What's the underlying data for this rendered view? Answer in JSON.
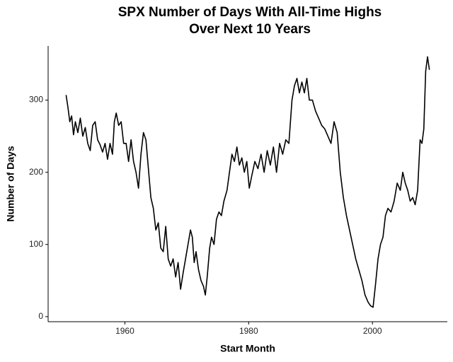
{
  "chart_data": {
    "type": "line",
    "title": [
      "SPX Number of Days With All-Time Highs",
      "Over Next 10 Years"
    ],
    "x_label": "Start Month",
    "y_label": "Number of Days",
    "color": "#000000",
    "xlim": [
      1947.6,
      2012.1
    ],
    "ylim": [
      -7,
      375
    ],
    "xticks": [
      1960,
      1980,
      2000
    ],
    "yticks": [
      0,
      100,
      200,
      300
    ],
    "grid": false,
    "x": [
      1950.5,
      1950.8,
      1951.1,
      1951.4,
      1951.7,
      1952.0,
      1952.4,
      1952.8,
      1953.2,
      1953.6,
      1954.0,
      1954.4,
      1954.8,
      1955.2,
      1955.6,
      1956.0,
      1956.4,
      1956.8,
      1957.2,
      1957.6,
      1958.0,
      1958.3,
      1958.6,
      1959.0,
      1959.4,
      1959.8,
      1960.2,
      1960.6,
      1961.0,
      1961.4,
      1961.8,
      1962.2,
      1962.6,
      1963.0,
      1963.4,
      1963.8,
      1964.2,
      1964.6,
      1965.0,
      1965.4,
      1965.8,
      1966.2,
      1966.6,
      1967.0,
      1967.4,
      1967.8,
      1968.2,
      1968.6,
      1969.0,
      1969.4,
      1969.8,
      1970.2,
      1970.6,
      1970.9,
      1971.2,
      1971.5,
      1971.9,
      1972.3,
      1972.7,
      1973.0,
      1973.3,
      1973.7,
      1974.0,
      1974.4,
      1974.8,
      1975.2,
      1975.6,
      1976.0,
      1976.5,
      1976.9,
      1977.3,
      1977.7,
      1978.1,
      1978.5,
      1978.9,
      1979.3,
      1979.7,
      1980.1,
      1980.5,
      1981.0,
      1981.5,
      1982.0,
      1982.5,
      1983.0,
      1983.5,
      1984.0,
      1984.5,
      1985.0,
      1985.5,
      1986.0,
      1986.5,
      1987.0,
      1987.4,
      1987.8,
      1988.2,
      1988.6,
      1989.0,
      1989.4,
      1989.8,
      1990.3,
      1990.8,
      1991.3,
      1991.8,
      1992.3,
      1992.8,
      1993.3,
      1993.8,
      1994.3,
      1994.8,
      1995.3,
      1995.8,
      1996.3,
      1996.8,
      1997.3,
      1997.8,
      1998.3,
      1998.8,
      1999.3,
      1999.7,
      2000.1,
      2000.5,
      2000.9,
      2001.3,
      2001.7,
      2002.1,
      2002.5,
      2003.0,
      2003.5,
      2004.0,
      2004.5,
      2004.9,
      2005.3,
      2005.7,
      2006.1,
      2006.5,
      2006.9,
      2007.3,
      2007.7,
      2008.0,
      2008.3,
      2008.6,
      2008.9,
      2009.2
    ],
    "values": [
      307,
      290,
      270,
      278,
      252,
      270,
      255,
      275,
      250,
      262,
      240,
      230,
      265,
      270,
      245,
      238,
      228,
      240,
      218,
      240,
      225,
      270,
      282,
      265,
      270,
      240,
      240,
      215,
      245,
      215,
      200,
      178,
      225,
      255,
      245,
      205,
      165,
      150,
      120,
      130,
      95,
      90,
      125,
      80,
      70,
      80,
      55,
      75,
      38,
      60,
      80,
      100,
      120,
      110,
      75,
      90,
      65,
      50,
      42,
      30,
      55,
      95,
      110,
      100,
      135,
      145,
      140,
      160,
      175,
      200,
      225,
      215,
      235,
      210,
      220,
      200,
      215,
      178,
      195,
      215,
      205,
      225,
      200,
      230,
      210,
      235,
      200,
      240,
      225,
      245,
      240,
      300,
      320,
      330,
      310,
      325,
      310,
      330,
      300,
      300,
      285,
      275,
      265,
      260,
      250,
      240,
      270,
      255,
      200,
      165,
      140,
      120,
      100,
      80,
      65,
      50,
      30,
      20,
      15,
      13,
      45,
      80,
      100,
      110,
      140,
      150,
      145,
      160,
      185,
      175,
      200,
      185,
      175,
      160,
      165,
      155,
      175,
      245,
      240,
      260,
      340,
      360,
      342
    ]
  }
}
